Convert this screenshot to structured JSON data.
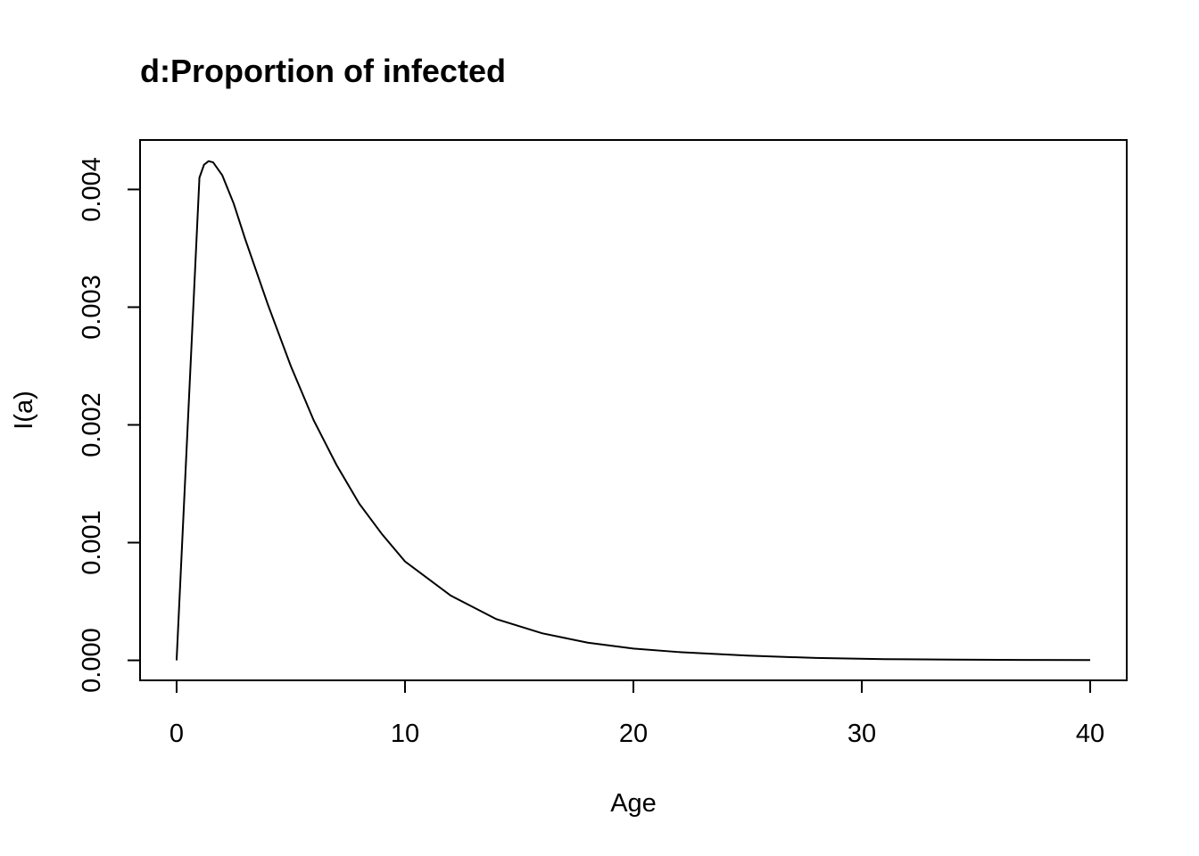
{
  "chart_data": {
    "type": "line",
    "title": "d:Proportion of infected",
    "xlabel": "Age",
    "ylabel": "I(a)",
    "xlim": [
      -1.6,
      41.6
    ],
    "ylim": [
      -0.00017,
      0.00442
    ],
    "xticks": [
      0,
      10,
      20,
      30,
      40
    ],
    "xtick_labels": [
      "0",
      "10",
      "20",
      "30",
      "40"
    ],
    "yticks": [
      0.0,
      0.001,
      0.002,
      0.003,
      0.004
    ],
    "ytick_labels": [
      "0.000",
      "0.001",
      "0.002",
      "0.003",
      "0.004"
    ],
    "grid": false,
    "legend": "none",
    "line_color": "#000000",
    "series": [
      {
        "x": [
          0,
          1,
          1.2,
          1.4,
          1.6,
          2,
          2.5,
          3,
          4,
          5,
          6,
          7,
          8,
          9,
          10,
          12,
          14,
          16,
          18,
          20,
          22,
          25,
          28,
          31,
          34,
          37,
          40
        ],
        "y": [
          0.0,
          0.0041,
          0.00421,
          0.00424,
          0.00423,
          0.00412,
          0.00388,
          0.00358,
          0.00302,
          0.0025,
          0.00204,
          0.00166,
          0.00133,
          0.00107,
          0.00084,
          0.00055,
          0.00035,
          0.00023,
          0.00015,
          0.0001,
          7e-05,
          4e-05,
          2e-05,
          1e-05,
          6e-06,
          3e-06,
          2e-06
        ]
      }
    ]
  }
}
